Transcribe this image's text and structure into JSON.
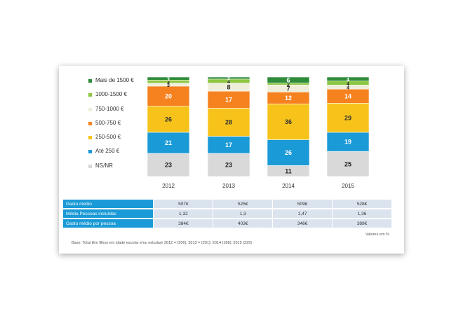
{
  "chart_data": {
    "type": "bar",
    "stacked": true,
    "categories": [
      "2012",
      "2013",
      "2014",
      "2015"
    ],
    "series": [
      {
        "name": "NS/NR",
        "color": "#d9d9d9",
        "values": [
          23,
          23,
          11,
          25
        ],
        "labels": [
          "23",
          "23",
          "11",
          "25"
        ]
      },
      {
        "name": "Até 250 €",
        "color": "#1a9ad6",
        "values": [
          21,
          17,
          26,
          19
        ],
        "labels": [
          "21",
          "17",
          "26",
          "19"
        ]
      },
      {
        "name": "250-500 €",
        "color": "#f7c31a",
        "values": [
          26,
          28,
          36,
          29
        ],
        "labels": [
          "26",
          "28",
          "36",
          "29"
        ]
      },
      {
        "name": "500-750 €",
        "color": "#f5821f",
        "values": [
          20,
          17,
          12,
          14
        ],
        "labels": [
          "20",
          "17",
          "12",
          "14"
        ]
      },
      {
        "name": "750-1000 €",
        "color": "#eeeeda",
        "values": [
          3,
          8,
          7,
          4
        ],
        "labels": [
          "3",
          "8",
          "7",
          "4"
        ]
      },
      {
        "name": "1000-1500 €",
        "color": "#8cc63f",
        "values": [
          3,
          4,
          2,
          4
        ],
        "labels": [
          "3",
          "4",
          "2",
          "4"
        ]
      },
      {
        "name": "Mais de 1500 €",
        "color": "#2e8b3a",
        "values": [
          3,
          2,
          6,
          4
        ],
        "labels": [
          "3",
          "2",
          "6",
          "4"
        ]
      }
    ],
    "legend_order": [
      "Mais de 1500 €",
      "1000-1500 €",
      "750-1000 €",
      "500-750 €",
      "250-500 €",
      "Até 250 €",
      "NS/NR"
    ],
    "legend_position": "left",
    "ylim": [
      0,
      100
    ],
    "grid": false
  },
  "table": {
    "rows": [
      {
        "label": "Gasto médio",
        "values": [
          "507€",
          "525€",
          "509€",
          "528€"
        ]
      },
      {
        "label": "Média Pessoas incluídas",
        "values": [
          "1,32",
          "1,3",
          "1,47",
          "1,36"
        ]
      },
      {
        "label": "Gasto médio por pessoa",
        "values": [
          "384€",
          "403€",
          "346€",
          "389€"
        ]
      }
    ]
  },
  "notes": {
    "units": "Valores em %",
    "base": "Base: Total têm filhos em idade escolar e/ou estudam 2012 = (206); 2013 = (201); 2014 (188); 2015 (229)"
  }
}
